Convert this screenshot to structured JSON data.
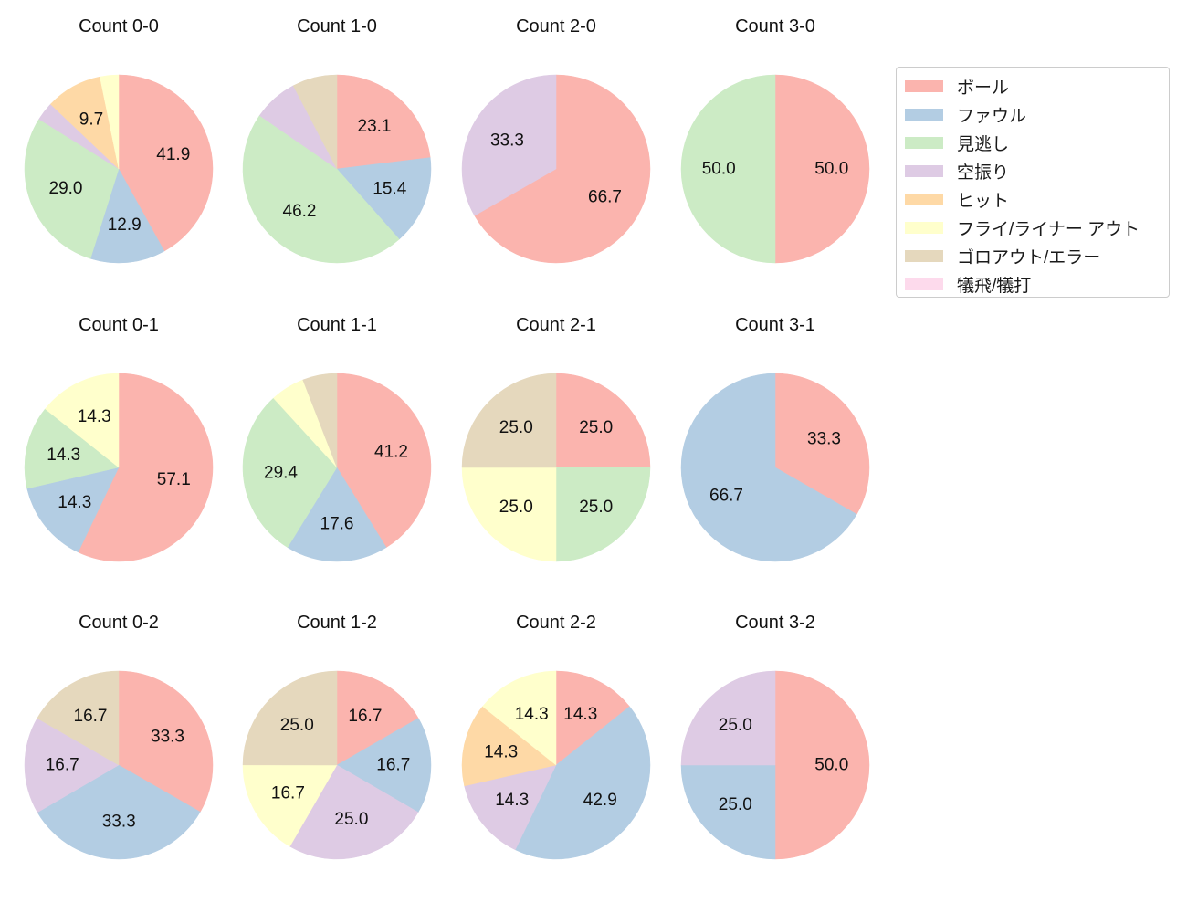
{
  "page": {
    "background": "#ffffff",
    "text_color": "#111111"
  },
  "legend": {
    "border_color": "#cccccc",
    "items": [
      {
        "key": "ball",
        "label": "ボール",
        "color": "#fbb4ae"
      },
      {
        "key": "foul",
        "label": "ファウル",
        "color": "#b3cde3"
      },
      {
        "key": "looking",
        "label": "見逃し",
        "color": "#ccebc5"
      },
      {
        "key": "swinging",
        "label": "空振り",
        "color": "#decbe4"
      },
      {
        "key": "hit",
        "label": "ヒット",
        "color": "#fed9a6"
      },
      {
        "key": "fly_out",
        "label": "フライ/ライナー アウト",
        "color": "#ffffcc"
      },
      {
        "key": "ground_out",
        "label": "ゴロアウト/エラー",
        "color": "#e5d8bd"
      },
      {
        "key": "sacrifice",
        "label": "犠飛/犠打",
        "color": "#fddaec"
      }
    ]
  },
  "chart_data": {
    "type": "pie",
    "unit": "percent",
    "start_angle_deg": 90,
    "direction": "clockwise",
    "pct_label_distance": 0.6,
    "label_min_pct": 9,
    "label_format_decimals": 1,
    "radius_px": 103,
    "charts": [
      {
        "title": "Count 0-0",
        "slices": [
          {
            "key": "ball",
            "pct": 41.9
          },
          {
            "key": "foul",
            "pct": 12.9
          },
          {
            "key": "looking",
            "pct": 29.0
          },
          {
            "key": "swinging",
            "pct": 3.2
          },
          {
            "key": "hit",
            "pct": 9.7
          },
          {
            "key": "fly_out",
            "pct": 3.2
          }
        ]
      },
      {
        "title": "Count 1-0",
        "slices": [
          {
            "key": "ball",
            "pct": 23.1
          },
          {
            "key": "foul",
            "pct": 15.4
          },
          {
            "key": "looking",
            "pct": 46.2
          },
          {
            "key": "swinging",
            "pct": 7.7
          },
          {
            "key": "ground_out",
            "pct": 7.7
          }
        ]
      },
      {
        "title": "Count 2-0",
        "slices": [
          {
            "key": "ball",
            "pct": 66.7
          },
          {
            "key": "swinging",
            "pct": 33.3
          }
        ]
      },
      {
        "title": "Count 3-0",
        "slices": [
          {
            "key": "ball",
            "pct": 50.0
          },
          {
            "key": "looking",
            "pct": 50.0
          }
        ]
      },
      {
        "title": "Count 0-1",
        "slices": [
          {
            "key": "ball",
            "pct": 57.1
          },
          {
            "key": "foul",
            "pct": 14.3
          },
          {
            "key": "looking",
            "pct": 14.3
          },
          {
            "key": "fly_out",
            "pct": 14.3
          }
        ]
      },
      {
        "title": "Count 1-1",
        "slices": [
          {
            "key": "ball",
            "pct": 41.2
          },
          {
            "key": "foul",
            "pct": 17.6
          },
          {
            "key": "looking",
            "pct": 29.4
          },
          {
            "key": "fly_out",
            "pct": 5.9
          },
          {
            "key": "ground_out",
            "pct": 5.9
          }
        ]
      },
      {
        "title": "Count 2-1",
        "slices": [
          {
            "key": "ball",
            "pct": 25.0
          },
          {
            "key": "looking",
            "pct": 25.0
          },
          {
            "key": "fly_out",
            "pct": 25.0
          },
          {
            "key": "ground_out",
            "pct": 25.0
          }
        ]
      },
      {
        "title": "Count 3-1",
        "slices": [
          {
            "key": "ball",
            "pct": 33.3
          },
          {
            "key": "foul",
            "pct": 66.7
          }
        ]
      },
      {
        "title": "Count 0-2",
        "slices": [
          {
            "key": "ball",
            "pct": 33.3
          },
          {
            "key": "foul",
            "pct": 33.3
          },
          {
            "key": "swinging",
            "pct": 16.7
          },
          {
            "key": "ground_out",
            "pct": 16.7
          }
        ]
      },
      {
        "title": "Count 1-2",
        "slices": [
          {
            "key": "ball",
            "pct": 16.7
          },
          {
            "key": "foul",
            "pct": 16.7
          },
          {
            "key": "swinging",
            "pct": 25.0
          },
          {
            "key": "fly_out",
            "pct": 16.7
          },
          {
            "key": "ground_out",
            "pct": 25.0
          }
        ]
      },
      {
        "title": "Count 2-2",
        "slices": [
          {
            "key": "ball",
            "pct": 14.3
          },
          {
            "key": "foul",
            "pct": 42.9
          },
          {
            "key": "swinging",
            "pct": 14.3
          },
          {
            "key": "hit",
            "pct": 14.3
          },
          {
            "key": "fly_out",
            "pct": 14.3
          }
        ]
      },
      {
        "title": "Count 3-2",
        "slices": [
          {
            "key": "ball",
            "pct": 50.0
          },
          {
            "key": "foul",
            "pct": 25.0
          },
          {
            "key": "swinging",
            "pct": 25.0
          }
        ]
      }
    ]
  }
}
